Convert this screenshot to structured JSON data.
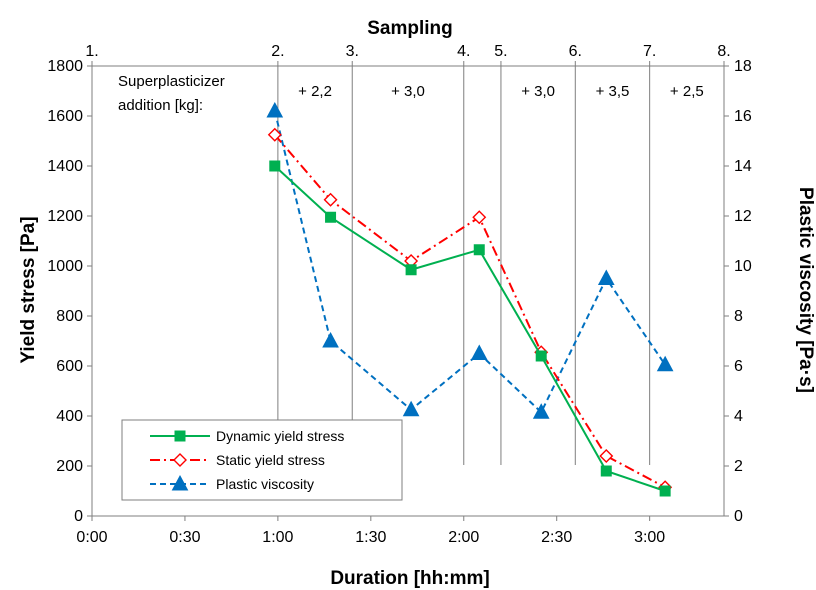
{
  "chart_data": {
    "type": "line",
    "top_axis": {
      "title": "Sampling",
      "labels": [
        "1.",
        "2.",
        "3.",
        "4.",
        "5.",
        "6.",
        "7.",
        "8."
      ],
      "positions": [
        "0:00",
        "1:00",
        "1:24",
        "2:00",
        "2:12",
        "2:36",
        "3:00",
        "3:24"
      ]
    },
    "x": {
      "label": "Duration [hh:mm]",
      "ticks": [
        "0:00",
        "0:30",
        "1:00",
        "1:30",
        "2:00",
        "2:30",
        "3:00"
      ],
      "range": [
        "0:00",
        "3:24"
      ]
    },
    "y_left": {
      "label": "Yield stress [Pa]",
      "range": [
        0,
        1800
      ],
      "ticks": [
        0,
        200,
        400,
        600,
        800,
        1000,
        1200,
        1400,
        1600,
        1800
      ]
    },
    "y_right": {
      "label": "Plastic viscosity [Pa·s]",
      "range": [
        0,
        18
      ],
      "ticks": [
        0,
        2,
        4,
        6,
        8,
        10,
        12,
        14,
        16,
        18
      ]
    },
    "annotation": {
      "line1": "Superplasticizer",
      "line2": "addition [kg]:",
      "values": [
        "+ 2,2",
        "+ 3,0",
        "",
        "+ 3,0",
        "+ 3,5",
        "+ 2,5"
      ]
    },
    "series": [
      {
        "name": "Dynamic yield stress",
        "axis": "left",
        "color": "#00B050",
        "marker": "square",
        "x": [
          "0:59",
          "1:17",
          "1:43",
          "2:05",
          "2:25",
          "2:46",
          "3:05"
        ],
        "values": [
          1400,
          1195,
          985,
          1065,
          640,
          180,
          100
        ]
      },
      {
        "name": "Static yield stress",
        "axis": "left",
        "color": "#FF0000",
        "marker": "diamond",
        "x": [
          "0:59",
          "1:17",
          "1:43",
          "2:05",
          "2:25",
          "2:46",
          "3:05"
        ],
        "values": [
          1525,
          1265,
          1020,
          1195,
          655,
          240,
          115
        ]
      },
      {
        "name": "Plastic viscosity",
        "axis": "right",
        "color": "#0070C0",
        "marker": "triangle",
        "x": [
          "0:59",
          "1:17",
          "1:43",
          "2:05",
          "2:25",
          "2:46",
          "3:05"
        ],
        "values": [
          16.2,
          7.0,
          4.25,
          6.5,
          4.15,
          9.5,
          6.05
        ]
      }
    ],
    "legend": {
      "position": "bottom-left"
    },
    "grid": {
      "horizontal": false,
      "vertical": "sampling-lines"
    }
  }
}
